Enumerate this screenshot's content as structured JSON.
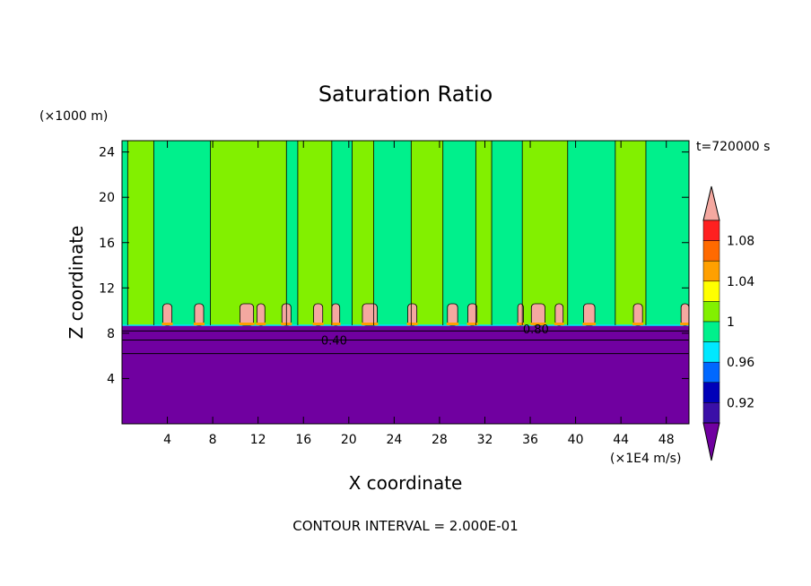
{
  "chart_data": {
    "type": "heatmap",
    "title": "Saturation Ratio",
    "xlabel": "X coordinate",
    "ylabel": "Z coordinate",
    "x_unit": "(×1E4 m/s)",
    "y_unit": "(×1000 m)",
    "time_label": "t=720000 s",
    "footer": "CONTOUR INTERVAL = 2.000E-01",
    "xlim": [
      0,
      50
    ],
    "ylim": [
      0,
      25
    ],
    "x_ticks": [
      4,
      8,
      12,
      16,
      20,
      24,
      28,
      32,
      36,
      40,
      44,
      48
    ],
    "y_ticks": [
      4,
      8,
      12,
      16,
      20,
      24
    ],
    "contour_labels": [
      {
        "text": "0.40",
        "x": 18.7,
        "y": 7.4
      },
      {
        "text": "0.80",
        "x": 36.5,
        "y": 8.4
      }
    ],
    "colorbar": {
      "levels": [
        0.92,
        0.96,
        1,
        1.04,
        1.08
      ],
      "level_labels": [
        "0.92",
        "0.96",
        "1",
        "1.04",
        "1.08"
      ],
      "colors": [
        "#7000a0",
        "#3a0fa8",
        "#0000b8",
        "#0068ff",
        "#00e8ff",
        "#00f08c",
        "#82f000",
        "#ffff00",
        "#ffa000",
        "#ff6a00",
        "#ff2020",
        "#f4a8a0"
      ]
    },
    "regions": {
      "lower_layer_color": "#7000a0",
      "lower_layer_top": 8.7,
      "columns_light": [
        [
          0.5,
          2.8
        ],
        [
          7.8,
          14.5
        ],
        [
          15.5,
          18.5
        ],
        [
          20.3,
          22.2
        ],
        [
          25.5,
          28.3
        ],
        [
          31.2,
          32.6
        ],
        [
          35.3,
          39.3
        ],
        [
          43.5,
          46.2
        ]
      ],
      "columns_dark": [
        [
          0.0,
          0.5
        ],
        [
          2.8,
          7.8
        ],
        [
          14.5,
          15.5
        ],
        [
          18.5,
          20.3
        ],
        [
          22.2,
          25.5
        ],
        [
          28.3,
          31.2
        ],
        [
          32.6,
          35.3
        ],
        [
          39.3,
          43.5
        ],
        [
          46.2,
          50.0
        ]
      ],
      "pink_cells": [
        [
          3.6,
          4.4
        ],
        [
          6.4,
          7.2
        ],
        [
          10.4,
          11.6
        ],
        [
          11.9,
          12.6
        ],
        [
          14.1,
          14.9
        ],
        [
          16.9,
          17.7
        ],
        [
          18.5,
          19.2
        ],
        [
          21.2,
          22.5
        ],
        [
          25.2,
          26.0
        ],
        [
          28.7,
          29.6
        ],
        [
          30.5,
          31.3
        ],
        [
          34.9,
          35.4
        ],
        [
          36.1,
          37.3
        ],
        [
          38.2,
          38.9
        ],
        [
          40.7,
          41.7
        ],
        [
          45.1,
          45.9
        ],
        [
          49.3,
          50.0
        ]
      ]
    }
  }
}
